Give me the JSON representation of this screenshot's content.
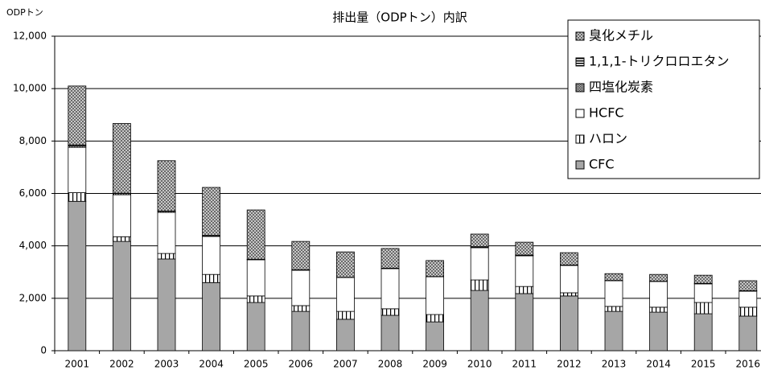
{
  "chart_data": {
    "type": "stacked_bar",
    "title": "排出量（ODPトン）内訳",
    "y_label": "ODPトン",
    "categories": [
      "2001",
      "2002",
      "2003",
      "2004",
      "2005",
      "2006",
      "2007",
      "2008",
      "2009",
      "2010",
      "2011",
      "2012",
      "2013",
      "2014",
      "2015",
      "2016"
    ],
    "series": [
      {
        "name": "CFC",
        "color": "#a6a6a6",
        "pattern": "solid",
        "values": [
          5700,
          4170,
          3500,
          2600,
          1840,
          1500,
          1200,
          1350,
          1100,
          2300,
          2180,
          2090,
          1500,
          1470,
          1410,
          1320
        ]
      },
      {
        "name": "ハロン",
        "color": "#ffffff",
        "pattern": "vertical",
        "values": [
          330,
          180,
          210,
          310,
          250,
          220,
          300,
          250,
          280,
          400,
          270,
          120,
          190,
          190,
          430,
          340
        ]
      },
      {
        "name": "HCFC",
        "color": "#ffffff",
        "pattern": "solid",
        "values": [
          1730,
          1600,
          1570,
          1450,
          1380,
          1350,
          1290,
          1530,
          1440,
          1230,
          1170,
          1040,
          980,
          980,
          710,
          610
        ]
      },
      {
        "name": "四塩化炭素",
        "color": "#333333",
        "pattern": "checker",
        "values": [
          60,
          50,
          40,
          30,
          10,
          10,
          10,
          20,
          10,
          30,
          20,
          20,
          10,
          10,
          20,
          20
        ]
      },
      {
        "name": "1,1,1-トリクロロエタン",
        "color": "#555555",
        "pattern": "horizontal",
        "values": [
          30,
          10,
          10,
          10,
          10,
          10,
          0,
          0,
          0,
          10,
          10,
          0,
          0,
          0,
          0,
          0
        ]
      },
      {
        "name": "臭化メチル",
        "color": "#8c8c8c",
        "pattern": "crosshatch",
        "values": [
          2250,
          2660,
          1920,
          1830,
          1880,
          1080,
          970,
          750,
          610,
          480,
          490,
          470,
          260,
          260,
          310,
          380
        ]
      }
    ],
    "ylim": [
      0,
      12000
    ],
    "yticks": [
      0,
      {
        "value": 2000,
        "label": "2,000"
      },
      {
        "value": 4000,
        "label": "4,000"
      },
      {
        "value": 6000,
        "label": "6,000"
      },
      {
        "value": 8000,
        "label": "8,000"
      },
      {
        "value": 10000,
        "label": "10,000"
      },
      {
        "value": 12000,
        "label": "12,000"
      }
    ],
    "grid": true,
    "legend": "top-right"
  }
}
